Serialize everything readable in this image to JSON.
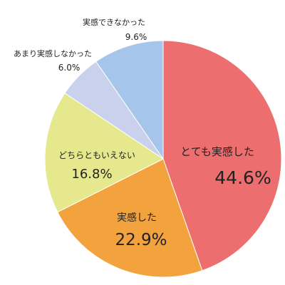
{
  "chart_data": {
    "type": "pie",
    "start": "12-o'clock",
    "direction": "clockwise",
    "slices": [
      {
        "label": "とても実感した",
        "value": 44.6,
        "value_text": "44.6%",
        "color": "#ec6e6f"
      },
      {
        "label": "実感した",
        "value": 22.9,
        "value_text": "22.9%",
        "color": "#f3a33e"
      },
      {
        "label": "どちらともいえない",
        "value": 16.8,
        "value_text": "16.8%",
        "color": "#e5e88c"
      },
      {
        "label": "あまり実感しなかった",
        "value": 6.0,
        "value_text": "6.0%",
        "color": "#c9d1ec"
      },
      {
        "label": "実感できなかった",
        "value": 9.6,
        "value_text": "9.6%",
        "color": "#a5c5ea"
      }
    ]
  }
}
